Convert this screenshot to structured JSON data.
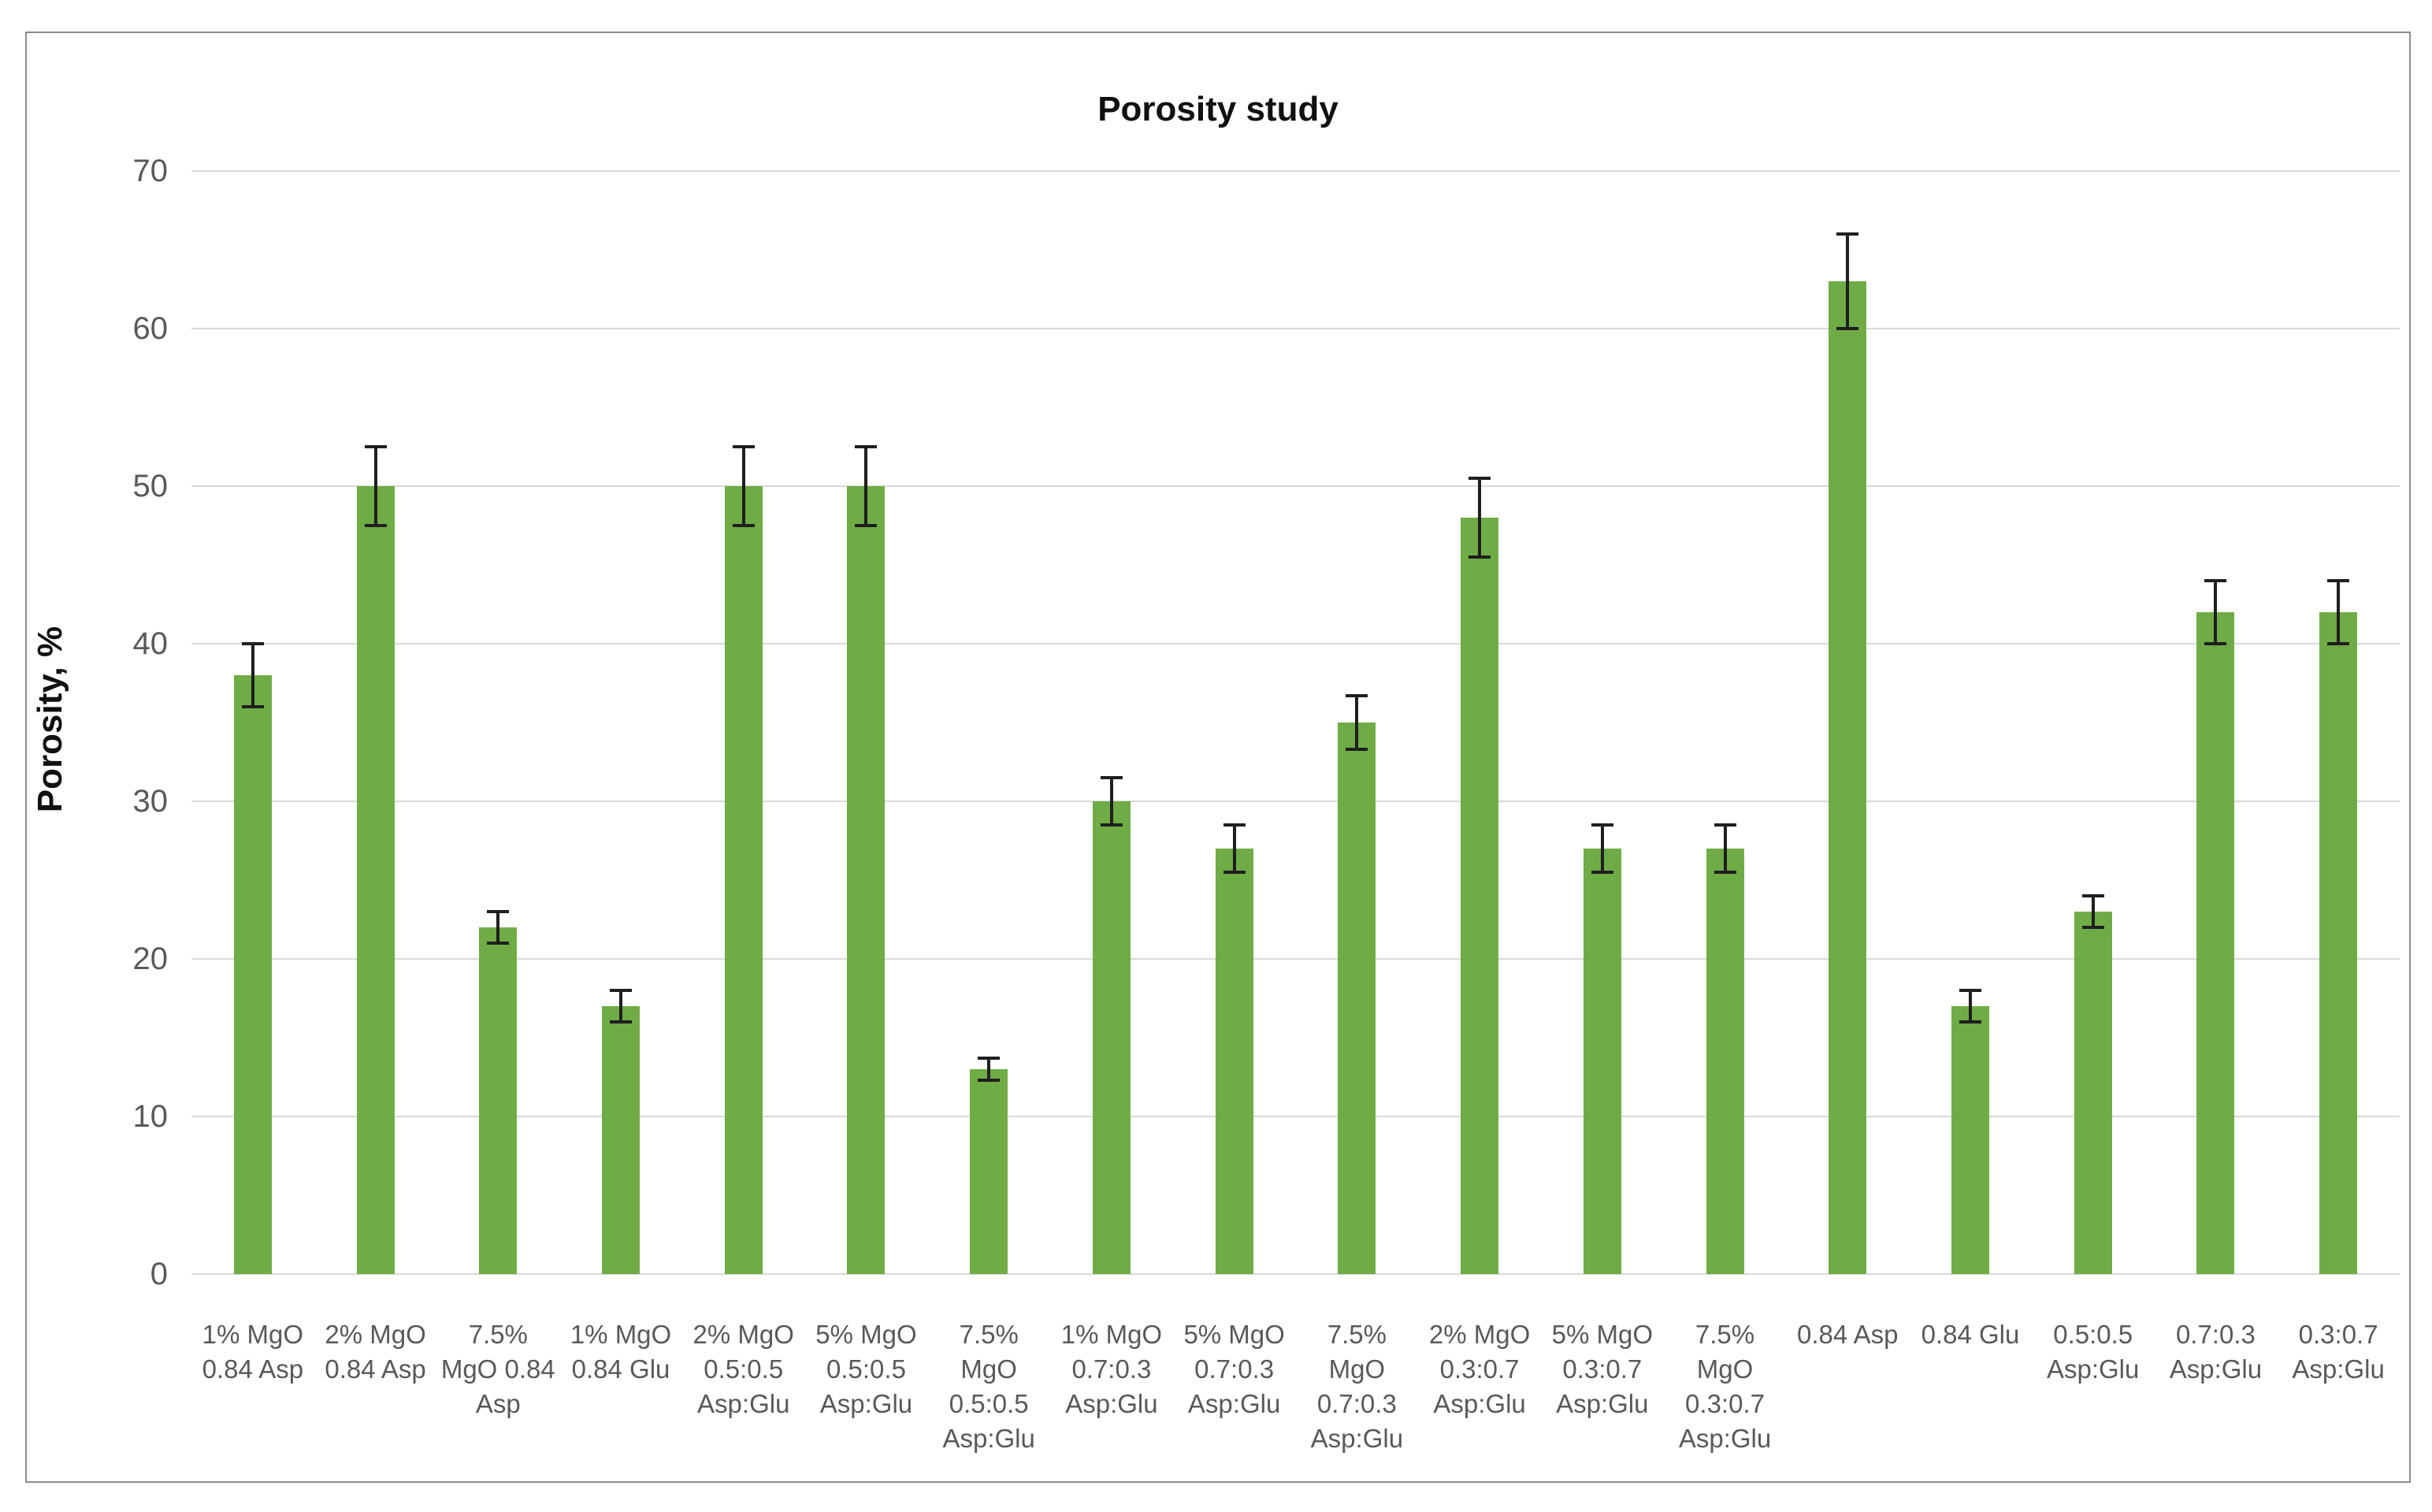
{
  "chart_data": {
    "type": "bar",
    "title": "Porosity study",
    "xlabel": "",
    "ylabel": "Porosity, %",
    "ylim": [
      0,
      70
    ],
    "yticks": [
      0,
      10,
      20,
      30,
      40,
      50,
      60,
      70
    ],
    "grid": true,
    "legend": false,
    "error_bars": true,
    "categories": [
      "1% MgO 0.84 Asp",
      "2% MgO 0.84 Asp",
      "7.5% MgO 0.84 Asp",
      "1% MgO 0.84 Glu",
      "2% MgO 0.5:0.5 Asp:Glu",
      "5% MgO 0.5:0.5 Asp:Glu",
      "7.5% MgO 0.5:0.5 Asp:Glu",
      "1% MgO 0.7:0.3 Asp:Glu",
      "5% MgO 0.7:0.3 Asp:Glu",
      "7.5% MgO 0.7:0.3 Asp:Glu",
      "2% MgO 0.3:0.7 Asp:Glu",
      "5% MgO 0.3:0.7 Asp:Glu",
      "7.5% MgO 0.3:0.7 Asp:Glu",
      "0.84 Asp",
      "0.84 Glu",
      "0.5:0.5 Asp:Glu",
      "0.7:0.3 Asp:Glu",
      "0.3:0.7 Asp:Glu"
    ],
    "category_label_lines": [
      [
        "1% MgO",
        "0.84 Asp"
      ],
      [
        "2% MgO",
        "0.84 Asp"
      ],
      [
        "7.5%",
        "MgO 0.84",
        "Asp"
      ],
      [
        "1% MgO",
        "0.84 Glu"
      ],
      [
        "2% MgO",
        "0.5:0.5",
        "Asp:Glu"
      ],
      [
        "5% MgO",
        "0.5:0.5",
        "Asp:Glu"
      ],
      [
        "7.5%",
        "MgO",
        "0.5:0.5",
        "Asp:Glu"
      ],
      [
        "1% MgO",
        "0.7:0.3",
        "Asp:Glu"
      ],
      [
        "5% MgO",
        "0.7:0.3",
        "Asp:Glu"
      ],
      [
        "7.5%",
        "MgO",
        "0.7:0.3",
        "Asp:Glu"
      ],
      [
        "2% MgO",
        "0.3:0.7",
        "Asp:Glu"
      ],
      [
        "5% MgO",
        "0.3:0.7",
        "Asp:Glu"
      ],
      [
        "7.5%",
        "MgO",
        "0.3:0.7",
        "Asp:Glu"
      ],
      [
        "0.84 Asp"
      ],
      [
        "0.84 Glu"
      ],
      [
        "0.5:0.5",
        "Asp:Glu"
      ],
      [
        "0.7:0.3",
        "Asp:Glu"
      ],
      [
        "0.3:0.7",
        "Asp:Glu"
      ]
    ],
    "values": [
      38,
      50,
      22,
      17,
      50,
      50,
      13,
      30,
      27,
      35,
      48,
      27,
      27,
      63,
      17,
      23,
      42,
      42
    ],
    "errors": [
      2,
      2.5,
      1,
      1,
      2.5,
      2.5,
      0.7,
      1.5,
      1.5,
      1.7,
      2.5,
      1.5,
      1.5,
      3,
      1,
      1,
      2,
      2
    ],
    "colors": {
      "bar": "#6fac46",
      "error_bar": "#1f1f1f",
      "gridline": "#d9d9d9",
      "tick_label": "#595959",
      "title": "#111111",
      "frame_border": "#8c8c8c"
    }
  }
}
